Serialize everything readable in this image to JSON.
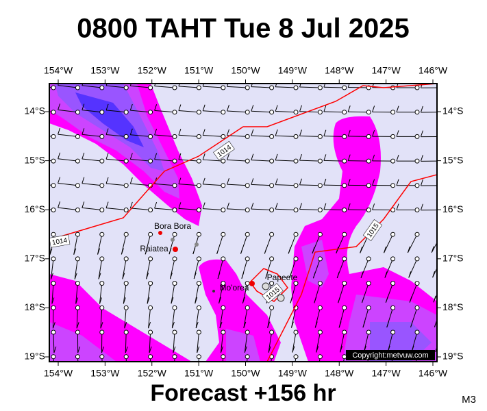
{
  "title": "0800 TAHT Tue 8 Jul 2025",
  "footer": "Forecast +156 hr",
  "code": "M3",
  "copyright": "Copyright:metvuw.com",
  "longitudes": [
    "154°W",
    "153°W",
    "152°W",
    "151°W",
    "150°W",
    "149°W",
    "148°W",
    "147°W",
    "146°W"
  ],
  "latitudes": [
    "14°S",
    "15°S",
    "16°S",
    "17°S",
    "18°S",
    "19°S"
  ],
  "places": [
    {
      "label": "Bora Bora"
    },
    {
      "label": "Raiatea"
    },
    {
      "label": "Mo'orea"
    },
    {
      "label": "Papeete"
    }
  ],
  "isobars": [
    {
      "label": "1014"
    },
    {
      "label": "1014"
    },
    {
      "label": "1015"
    },
    {
      "label": "1015"
    }
  ]
}
